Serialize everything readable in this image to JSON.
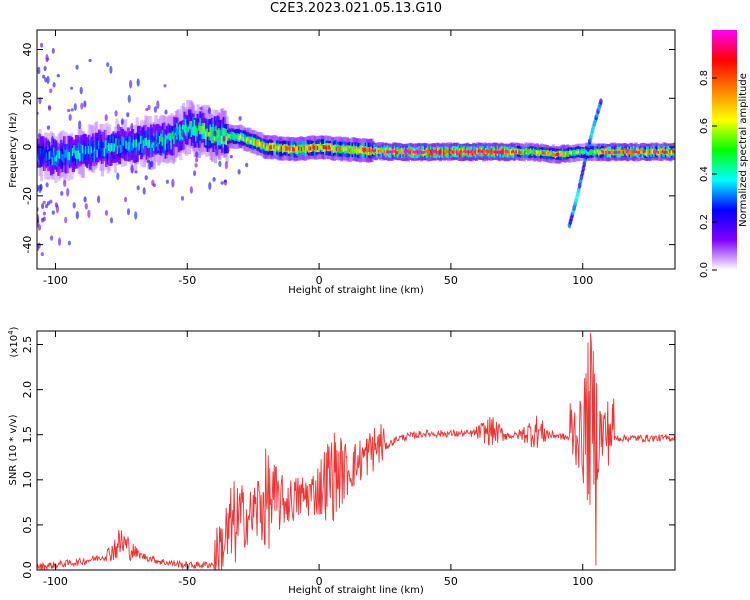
{
  "figure": {
    "title": "C2E3.2023.021.05.13.G10"
  },
  "chart_data": [
    {
      "type": "heatmap",
      "xlabel": "Height of straight line (km)",
      "ylabel": "Frequency (Hz)",
      "xlim": [
        -107,
        135
      ],
      "ylim": [
        -50,
        48
      ],
      "x_ticks": [
        -100,
        -50,
        0,
        50,
        100
      ],
      "y_ticks": [
        -40,
        -20,
        0,
        20,
        40
      ],
      "colorbar": {
        "label": "Normalized spectral amplitude",
        "range": [
          0,
          1
        ],
        "ticks": [
          0.0,
          0.2,
          0.4,
          0.6,
          0.8
        ],
        "tick_labels": [
          "0.0",
          "0.2",
          "0.4",
          "0.6",
          "0.8"
        ],
        "colors": [
          "#ffffff",
          "#8000ff",
          "#0000ff",
          "#00ffff",
          "#00ff00",
          "#ffff00",
          "#ff8000",
          "#ff0000",
          "#ff00ff"
        ]
      },
      "dominant_ridge": {
        "height_km": [
          -107,
          -100,
          -90,
          -80,
          -70,
          -60,
          -50,
          -40,
          -30,
          -20,
          -10,
          0,
          10,
          30,
          50,
          70,
          80,
          90,
          100,
          110,
          135
        ],
        "frequency_hz": [
          -3,
          -4,
          -2,
          0,
          1,
          2,
          8,
          5,
          4,
          0,
          -1,
          0,
          -1,
          -2,
          -2,
          -2,
          -2,
          -3,
          -2,
          -2,
          -2
        ],
        "amplitude": [
          0.3,
          0.35,
          0.35,
          0.35,
          0.35,
          0.4,
          0.45,
          0.5,
          0.55,
          0.7,
          0.75,
          0.75,
          0.65,
          0.9,
          0.95,
          0.95,
          0.6,
          0.75,
          0.5,
          0.85,
          0.8
        ]
      },
      "secondary_trace": {
        "height_km": [
          95,
          98,
          101,
          104,
          107
        ],
        "frequency_hz": [
          -32,
          -20,
          -5,
          8,
          19
        ]
      }
    },
    {
      "type": "line",
      "xlabel": "Height of straight line (km)",
      "ylabel": "SNR (10 * v/v)",
      "y_exponent_label": "(x10",
      "y_exponent_power": "4",
      "y_exponent_close": ")",
      "xlim": [
        -107,
        135
      ],
      "ylim": [
        0,
        2.65
      ],
      "x_ticks": [
        -100,
        -50,
        0,
        50,
        100
      ],
      "y_ticks": [
        0.0,
        0.5,
        1.0,
        1.5,
        2.0,
        2.5
      ],
      "y_tick_labels": [
        "0.0",
        "0.5",
        "1.0",
        "1.5",
        "2.0",
        "2.5"
      ],
      "color": "#ee3333",
      "envelope": {
        "height_km": [
          -107,
          -90,
          -80,
          -75,
          -70,
          -60,
          -50,
          -40,
          -35,
          -30,
          -20,
          -10,
          0,
          10,
          20,
          30,
          40,
          50,
          60,
          70,
          80,
          90,
          95,
          100,
          103,
          105,
          108,
          112,
          120,
          135
        ],
        "snr_x1e4": [
          0.02,
          0.08,
          0.15,
          0.25,
          0.17,
          0.08,
          0.04,
          0.05,
          0.22,
          0.45,
          0.6,
          0.7,
          0.8,
          1.0,
          1.25,
          1.45,
          1.5,
          1.5,
          1.5,
          1.48,
          1.48,
          1.48,
          1.45,
          1.35,
          1.35,
          1.35,
          1.4,
          1.45,
          1.45,
          1.45
        ]
      },
      "bursts": [
        {
          "height_km": -75,
          "amplitude": 0.3
        },
        {
          "height_km": -33,
          "amplitude": 0.5
        },
        {
          "height_km": -20,
          "amplitude": 0.6
        },
        {
          "height_km": 5,
          "amplitude": 0.5
        },
        {
          "height_km": 65,
          "amplitude": 0.25
        },
        {
          "height_km": 82,
          "amplitude": 0.3
        },
        {
          "height_km": 103,
          "amplitude": 1.3
        }
      ],
      "peak": {
        "height_km": 103,
        "snr_x1e4": 2.63
      },
      "minimum_spike": {
        "height_km": 105,
        "snr_x1e4": 0.05
      }
    }
  ]
}
